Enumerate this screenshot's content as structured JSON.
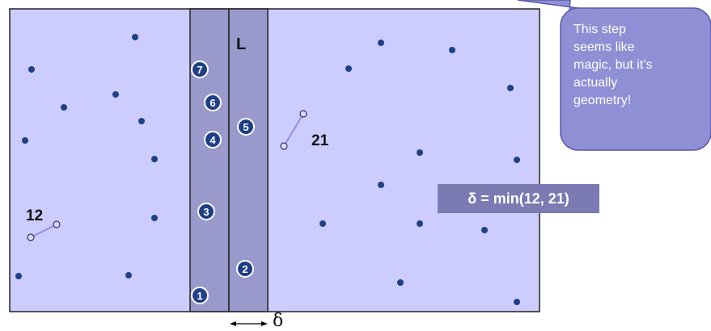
{
  "labels": {
    "strip_line": "L",
    "pair_left": "12",
    "pair_right": "21",
    "delta_axis": "δ"
  },
  "strip_points": [
    "1",
    "2",
    "3",
    "4",
    "5",
    "6",
    "7"
  ],
  "delta_box": "δ = min(12, 21)",
  "callout": "This step\nseems like\nmagic, but it’s\nactually\ngeometry!",
  "colors": {
    "region": "#ccccff",
    "strip": "#9999cc",
    "point": "#1f3f86",
    "callout": "#8f8fd6",
    "delta_box": "#7b7ab3"
  }
}
